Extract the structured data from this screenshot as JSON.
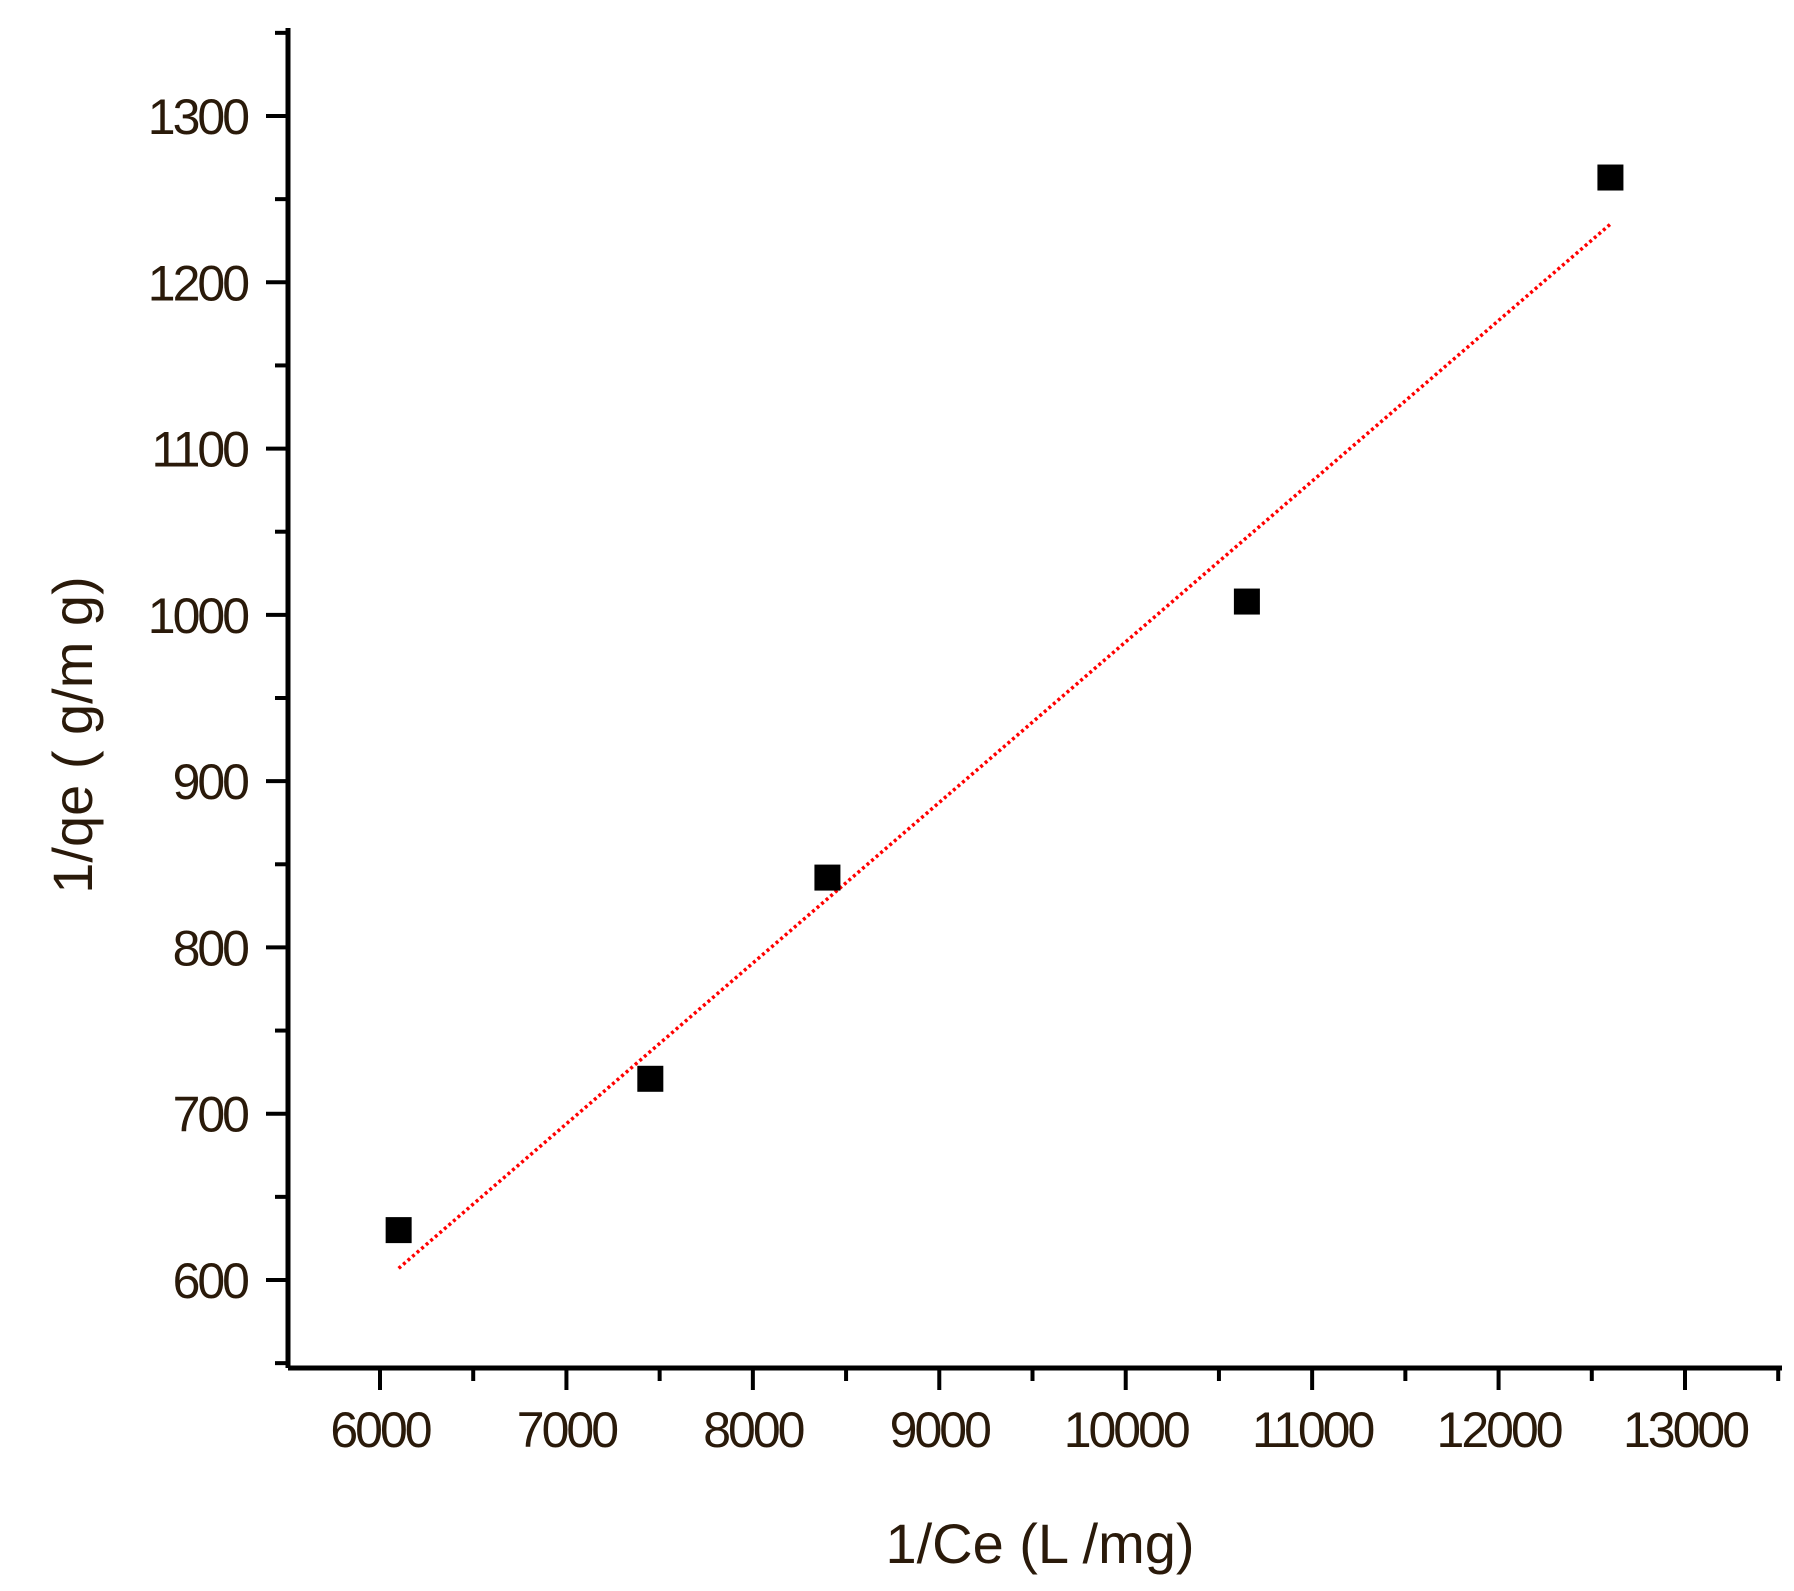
{
  "chart_data": {
    "type": "scatter",
    "title": "",
    "xlabel": "1/Ce (L /mg)",
    "ylabel": "1/qe ( g/m g)",
    "xlim": [
      5500,
      13500
    ],
    "ylim": [
      550,
      1355
    ],
    "x_ticks": [
      6000,
      7000,
      8000,
      9000,
      10000,
      11000,
      12000,
      13000
    ],
    "y_ticks": [
      600,
      700,
      800,
      900,
      1000,
      1100,
      1200,
      1300
    ],
    "grid": false,
    "legend": "none",
    "series": [
      {
        "kind": "points",
        "marker": "square",
        "color": "#000000",
        "x": [
          6100,
          7450,
          8400,
          10650,
          12600
        ],
        "y": [
          630,
          721,
          842,
          1008,
          1263
        ]
      },
      {
        "kind": "fit-line",
        "style": "dotted",
        "color": "#ff0000",
        "x": [
          6100,
          12600
        ],
        "y": [
          607,
          1235
        ]
      }
    ]
  }
}
